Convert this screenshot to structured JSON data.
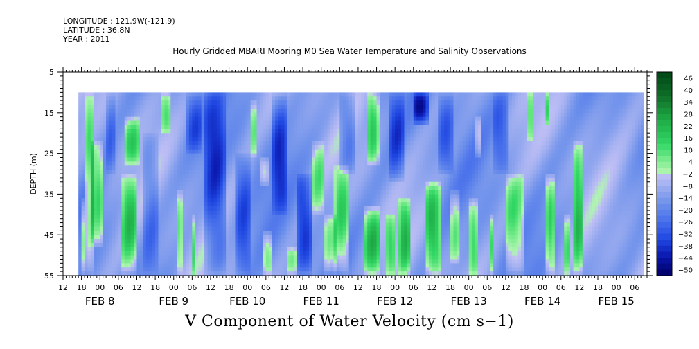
{
  "header": {
    "longitude": "LONGITUDE : 121.9W(-121.9)",
    "latitude": "LATITUDE : 36.8N",
    "year": "YEAR : 2011"
  },
  "chart_data": {
    "type": "heatmap",
    "title": "Hourly Gridded MBARI Mooring M0 Sea Water Temperature and Salinity Observations",
    "variable_title": "V Component of Water Velocity (cm s−1)",
    "ylabel": "DEPTH (m)",
    "ylim": [
      5,
      55
    ],
    "y_inverted": true,
    "y_ticks": [
      "5",
      "15",
      "25",
      "35",
      "45",
      "55"
    ],
    "data_depth_range": [
      10,
      55
    ],
    "x_start": "FEB 7 12:00",
    "x_end": "FEB 15 10:00",
    "data_start": "FEB 7 17:00",
    "hour_ticks": [
      "12",
      "18",
      "00",
      "06",
      "12",
      "18",
      "00",
      "06",
      "12",
      "18",
      "00",
      "06",
      "12",
      "18",
      "00",
      "06",
      "12",
      "18",
      "00",
      "06",
      "12",
      "18",
      "00",
      "06",
      "12",
      "18",
      "00",
      "06",
      "12",
      "18",
      "00",
      "06"
    ],
    "date_labels": [
      "FEB  8",
      "FEB  9",
      "FEB 10",
      "FEB 11",
      "FEB 12",
      "FEB 13",
      "FEB 14",
      "FEB 15"
    ],
    "colorbar": {
      "labels": [
        "46",
        "40",
        "34",
        "28",
        "22",
        "16",
        "10",
        "4",
        "−2",
        "−8",
        "−14",
        "−20",
        "−26",
        "−32",
        "−38",
        "−44",
        "−50"
      ],
      "min": -50,
      "max": 52,
      "step": 3
    },
    "green_features": [
      {
        "t0": 1.2,
        "t1": 5.0,
        "d0": 10,
        "d1": 55,
        "v": 10
      },
      {
        "t0": 3.0,
        "t1": 8.0,
        "d0": 22,
        "d1": 48,
        "v": 16
      },
      {
        "t0": 0.0,
        "t1": 2.0,
        "d0": 36,
        "d1": 55,
        "v": 8
      },
      {
        "t0": 14.0,
        "t1": 20.0,
        "d0": 16,
        "d1": 28,
        "v": 12
      },
      {
        "t0": 13.0,
        "t1": 19.0,
        "d0": 30,
        "d1": 55,
        "v": 14
      },
      {
        "t0": 26.0,
        "t1": 30.0,
        "d0": 10,
        "d1": 20,
        "v": 8
      },
      {
        "t0": 31.0,
        "t1": 33.5,
        "d0": 34,
        "d1": 55,
        "v": 8
      },
      {
        "t0": 36.0,
        "t1": 38.0,
        "d0": 40,
        "d1": 55,
        "v": 6
      },
      {
        "t0": 55.0,
        "t1": 58.0,
        "d0": 12,
        "d1": 26,
        "v": 6
      },
      {
        "t0": 58.0,
        "t1": 62.0,
        "d0": 26,
        "d1": 33,
        "v": 6
      },
      {
        "t0": 59.0,
        "t1": 63.0,
        "d0": 44,
        "d1": 55,
        "v": 10
      },
      {
        "t0": 67.0,
        "t1": 71.0,
        "d0": 48,
        "d1": 55,
        "v": 6
      },
      {
        "t0": 75.0,
        "t1": 80.0,
        "d0": 22,
        "d1": 40,
        "v": 6
      },
      {
        "t0": 79.0,
        "t1": 84.0,
        "d0": 40,
        "d1": 55,
        "v": 8
      },
      {
        "t0": 82.5,
        "t1": 88.0,
        "d0": 28,
        "d1": 55,
        "v": 14
      },
      {
        "t0": 93.0,
        "t1": 97.5,
        "d0": 10,
        "d1": 28,
        "v": 14
      },
      {
        "t0": 92.0,
        "t1": 98.0,
        "d0": 38,
        "d1": 55,
        "v": 18
      },
      {
        "t0": 99.0,
        "t1": 103.0,
        "d0": 40,
        "d1": 55,
        "v": 8
      },
      {
        "t0": 103.5,
        "t1": 108.0,
        "d0": 36,
        "d1": 55,
        "v": 14
      },
      {
        "t0": 112.0,
        "t1": 118.0,
        "d0": 32,
        "d1": 55,
        "v": 20
      },
      {
        "t0": 120.0,
        "t1": 124.0,
        "d0": 34,
        "d1": 52,
        "v": 10
      },
      {
        "t0": 126.0,
        "t1": 130.0,
        "d0": 36,
        "d1": 55,
        "v": 12
      },
      {
        "t0": 128.5,
        "t1": 131.0,
        "d0": 16,
        "d1": 26,
        "v": 8
      },
      {
        "t0": 133.0,
        "t1": 135.0,
        "d0": 40,
        "d1": 55,
        "v": 8
      },
      {
        "t0": 138.0,
        "t1": 145.0,
        "d0": 30,
        "d1": 55,
        "v": 12
      },
      {
        "t0": 151.0,
        "t1": 155.0,
        "d0": 30,
        "d1": 55,
        "v": 16
      },
      {
        "t0": 160.0,
        "t1": 164.0,
        "d0": 22,
        "d1": 55,
        "v": 14
      },
      {
        "t0": 157.0,
        "t1": 160.0,
        "d0": 40,
        "d1": 55,
        "v": 8
      },
      {
        "t0": 151.0,
        "t1": 153.0,
        "d0": 10,
        "d1": 18,
        "v": 6
      },
      {
        "t0": 145.5,
        "t1": 147.5,
        "d0": 10,
        "d1": 22,
        "v": 6
      }
    ],
    "blue_features": [
      {
        "t0": 40.0,
        "t1": 48.0,
        "d0": 10,
        "d1": 55,
        "v": -28
      },
      {
        "t0": 50.0,
        "t1": 56.0,
        "d0": 25,
        "d1": 55,
        "v": -24
      },
      {
        "t0": 62.0,
        "t1": 68.0,
        "d0": 10,
        "d1": 40,
        "v": -26
      },
      {
        "t0": 70.0,
        "t1": 76.0,
        "d0": 30,
        "d1": 55,
        "v": -28
      },
      {
        "t0": 84.0,
        "t1": 90.0,
        "d0": 10,
        "d1": 30,
        "v": -22
      },
      {
        "t0": 100.0,
        "t1": 106.0,
        "d0": 10,
        "d1": 32,
        "v": -24
      },
      {
        "t0": 108.0,
        "t1": 114.0,
        "d0": 10,
        "d1": 18,
        "v": -30
      },
      {
        "t0": 116.0,
        "t1": 122.0,
        "d0": 10,
        "d1": 30,
        "v": -22
      },
      {
        "t0": 134.0,
        "t1": 140.0,
        "d0": 10,
        "d1": 30,
        "v": -20
      },
      {
        "t0": 8.0,
        "t1": 12.0,
        "d0": 10,
        "d1": 30,
        "v": -18
      },
      {
        "t0": 20.0,
        "t1": 26.0,
        "d0": 20,
        "d1": 55,
        "v": -20
      },
      {
        "t0": 34.0,
        "t1": 40.0,
        "d0": 10,
        "d1": 25,
        "v": -22
      }
    ]
  }
}
